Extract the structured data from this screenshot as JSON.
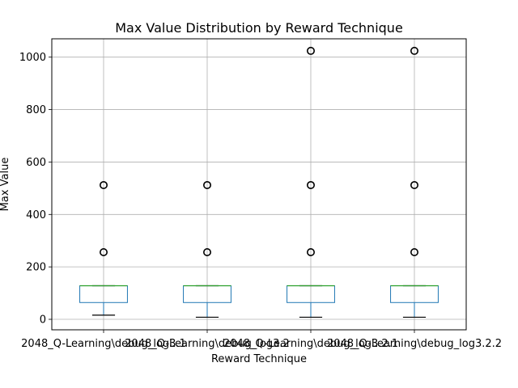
{
  "chart_data": {
    "type": "box",
    "title": "Max Value Distribution by Reward Technique",
    "xlabel": "Reward Technique",
    "ylabel": "Max Value",
    "ylim": [
      -40,
      1070
    ],
    "y_ticks": [
      0,
      200,
      400,
      600,
      800,
      1000
    ],
    "grid": true,
    "legend": "none",
    "categories": [
      "2048_Q-Learning\\debug_log3.1",
      "2048_Q-Learning\\debug_log3.2",
      "2048_Q-Learning\\debug_log3.2.1",
      "2048_Q-Learning\\debug_log3.2.2"
    ],
    "boxes": [
      {
        "whisker_low": 16,
        "q1": 64,
        "median": 128,
        "q3": 128,
        "whisker_high": 128,
        "outliers": [
          256,
          512
        ]
      },
      {
        "whisker_low": 8,
        "q1": 64,
        "median": 128,
        "q3": 128,
        "whisker_high": 128,
        "outliers": [
          256,
          512
        ]
      },
      {
        "whisker_low": 8,
        "q1": 64,
        "median": 128,
        "q3": 128,
        "whisker_high": 128,
        "outliers": [
          256,
          512,
          1024
        ]
      },
      {
        "whisker_low": 8,
        "q1": 64,
        "median": 128,
        "q3": 128,
        "whisker_high": 128,
        "outliers": [
          256,
          512,
          1024
        ]
      }
    ],
    "colors": {
      "box": "#1f77b4",
      "median": "#2ca02c",
      "whisker": "#000000",
      "grid": "#b0b0b0",
      "outlier": "#000000"
    }
  }
}
